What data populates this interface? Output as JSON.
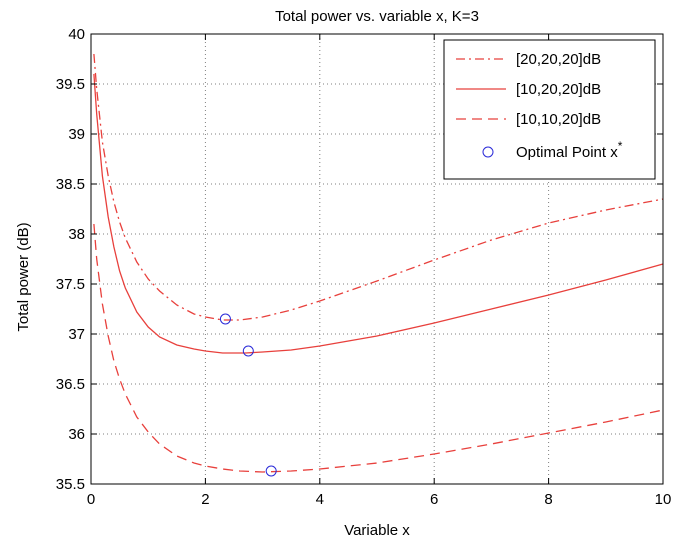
{
  "chart_data": {
    "type": "line",
    "title": "Total power vs. variable x, K=3",
    "xlabel": "Variable x",
    "ylabel": "Total power (dB)",
    "xlim": [
      0,
      10
    ],
    "ylim": [
      35.5,
      40
    ],
    "x_ticks": [
      "0",
      "2",
      "4",
      "6",
      "8",
      "10"
    ],
    "y_ticks": [
      "35.5",
      "36",
      "36.5",
      "37",
      "37.5",
      "38",
      "38.5",
      "39",
      "39.5",
      "40"
    ],
    "grid": true,
    "legend_position": "top-right",
    "series": [
      {
        "name": "[20,20,20]dB",
        "style": "dash-dot",
        "color": "#e8403c",
        "x": [
          0.05,
          0.1,
          0.2,
          0.3,
          0.4,
          0.5,
          0.6,
          0.8,
          1.0,
          1.2,
          1.5,
          1.8,
          2.0,
          2.3,
          2.6,
          3.0,
          3.5,
          4.0,
          5.0,
          6.0,
          7.0,
          8.0,
          9.0,
          10.0
        ],
        "y": [
          39.8,
          39.45,
          38.92,
          38.58,
          38.32,
          38.12,
          37.96,
          37.72,
          37.55,
          37.43,
          37.29,
          37.2,
          37.17,
          37.14,
          37.14,
          37.17,
          37.24,
          37.33,
          37.53,
          37.74,
          37.94,
          38.11,
          38.24,
          38.35
        ]
      },
      {
        "name": "[10,20,20]dB",
        "style": "solid",
        "color": "#e8403c",
        "x": [
          0.05,
          0.1,
          0.2,
          0.3,
          0.4,
          0.5,
          0.6,
          0.8,
          1.0,
          1.2,
          1.5,
          1.8,
          2.0,
          2.3,
          2.7,
          3.0,
          3.5,
          4.0,
          5.0,
          6.0,
          7.0,
          8.0,
          9.0,
          10.0
        ],
        "y": [
          39.6,
          39.2,
          38.58,
          38.17,
          37.87,
          37.63,
          37.46,
          37.22,
          37.07,
          36.97,
          36.89,
          36.85,
          36.83,
          36.81,
          36.81,
          36.82,
          36.84,
          36.88,
          36.98,
          37.11,
          37.25,
          37.39,
          37.54,
          37.7
        ]
      },
      {
        "name": "[10,10,20]dB",
        "style": "dashed",
        "color": "#e8403c",
        "x": [
          0.05,
          0.1,
          0.2,
          0.3,
          0.4,
          0.5,
          0.6,
          0.8,
          1.0,
          1.2,
          1.5,
          1.8,
          2.0,
          2.3,
          2.6,
          3.0,
          3.5,
          4.0,
          5.0,
          6.0,
          7.0,
          8.0,
          9.0,
          10.0
        ],
        "y": [
          38.1,
          37.75,
          37.3,
          36.98,
          36.73,
          36.55,
          36.4,
          36.17,
          36.02,
          35.9,
          35.78,
          35.71,
          35.68,
          35.65,
          35.63,
          35.62,
          35.63,
          35.65,
          35.71,
          35.8,
          35.9,
          36.01,
          36.12,
          36.24
        ]
      },
      {
        "name": "Optimal Point x*",
        "style": "marker-circle",
        "color": "#2a2ad8",
        "x": [
          2.35,
          2.75,
          3.15
        ],
        "y": [
          37.15,
          36.83,
          35.63
        ]
      }
    ]
  }
}
